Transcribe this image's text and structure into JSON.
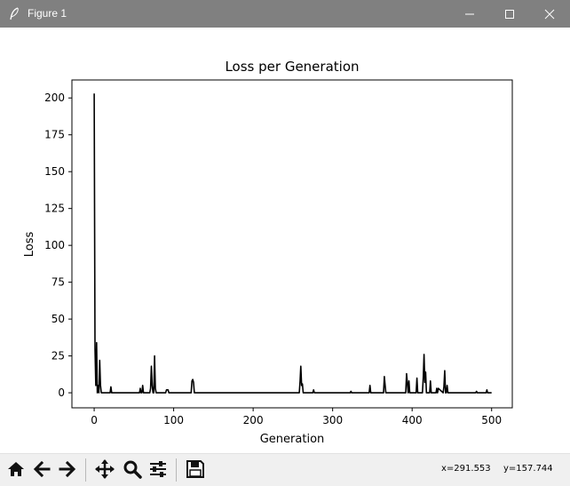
{
  "window": {
    "title": "Figure 1",
    "icons": {
      "app": "feather-icon",
      "minimize": "minimize-icon",
      "maximize": "maximize-icon",
      "close": "close-icon"
    }
  },
  "toolbar": {
    "buttons": [
      {
        "name": "home",
        "icon": "home-icon"
      },
      {
        "name": "back",
        "icon": "arrow-left-icon"
      },
      {
        "name": "forward",
        "icon": "arrow-right-icon"
      },
      {
        "name": "pan",
        "icon": "move-icon"
      },
      {
        "name": "zoom",
        "icon": "magnifier-icon"
      },
      {
        "name": "configure",
        "icon": "sliders-icon"
      },
      {
        "name": "save",
        "icon": "floppy-icon"
      }
    ],
    "coord_x": "x=291.553",
    "coord_y": "y=157.744"
  },
  "chart_data": {
    "type": "line",
    "title": "Loss per Generation",
    "xlabel": "Generation",
    "ylabel": "Loss",
    "xlim": [
      -28,
      526
    ],
    "ylim": [
      -10.2,
      212.2
    ],
    "xticks": [
      0,
      100,
      200,
      300,
      400,
      500
    ],
    "yticks": [
      0,
      25,
      50,
      75,
      100,
      125,
      150,
      175,
      200
    ],
    "grid": false,
    "line_color": "#000000",
    "series": [
      {
        "x": [
          0,
          1,
          2,
          3,
          4,
          5,
          6,
          7,
          8,
          9,
          10,
          20,
          21,
          22,
          30,
          57,
          58,
          59,
          60,
          61,
          62,
          70,
          71,
          72,
          73,
          74,
          75,
          76,
          77,
          78,
          79,
          80,
          90,
          91,
          92,
          93,
          94,
          95,
          122,
          123,
          124,
          125,
          126,
          240,
          258,
          259,
          260,
          261,
          262,
          263,
          275,
          276,
          277,
          322,
          323,
          324,
          346,
          347,
          348,
          364,
          365,
          366,
          367,
          392,
          393,
          394,
          395,
          396,
          397,
          405,
          406,
          407,
          413,
          414,
          415,
          416,
          417,
          418,
          422,
          423,
          424,
          430,
          431,
          432,
          433,
          439,
          440,
          441,
          442,
          443,
          444,
          445,
          480,
          481,
          482,
          493,
          494,
          495,
          500
        ],
        "y": [
          203,
          30,
          5,
          34,
          0,
          5,
          0,
          22,
          5,
          0,
          0,
          0,
          4,
          0,
          0,
          0,
          3,
          0,
          0,
          5,
          0,
          0,
          3,
          18,
          5,
          0,
          0,
          25,
          3,
          0,
          0,
          0,
          0,
          2,
          2,
          2,
          0,
          0,
          0,
          8,
          9,
          7,
          0,
          0,
          0,
          8,
          18,
          5,
          6,
          0,
          0,
          2,
          0,
          0,
          1,
          0,
          0,
          5,
          0,
          0,
          11,
          5,
          0,
          0,
          13,
          7,
          0,
          8,
          0,
          0,
          10,
          0,
          0,
          10,
          26,
          7,
          14,
          0,
          0,
          8,
          0,
          0,
          3,
          0,
          3,
          0,
          4,
          15,
          0,
          0,
          5,
          0,
          0,
          1,
          0,
          0,
          2,
          0,
          0
        ]
      }
    ]
  }
}
